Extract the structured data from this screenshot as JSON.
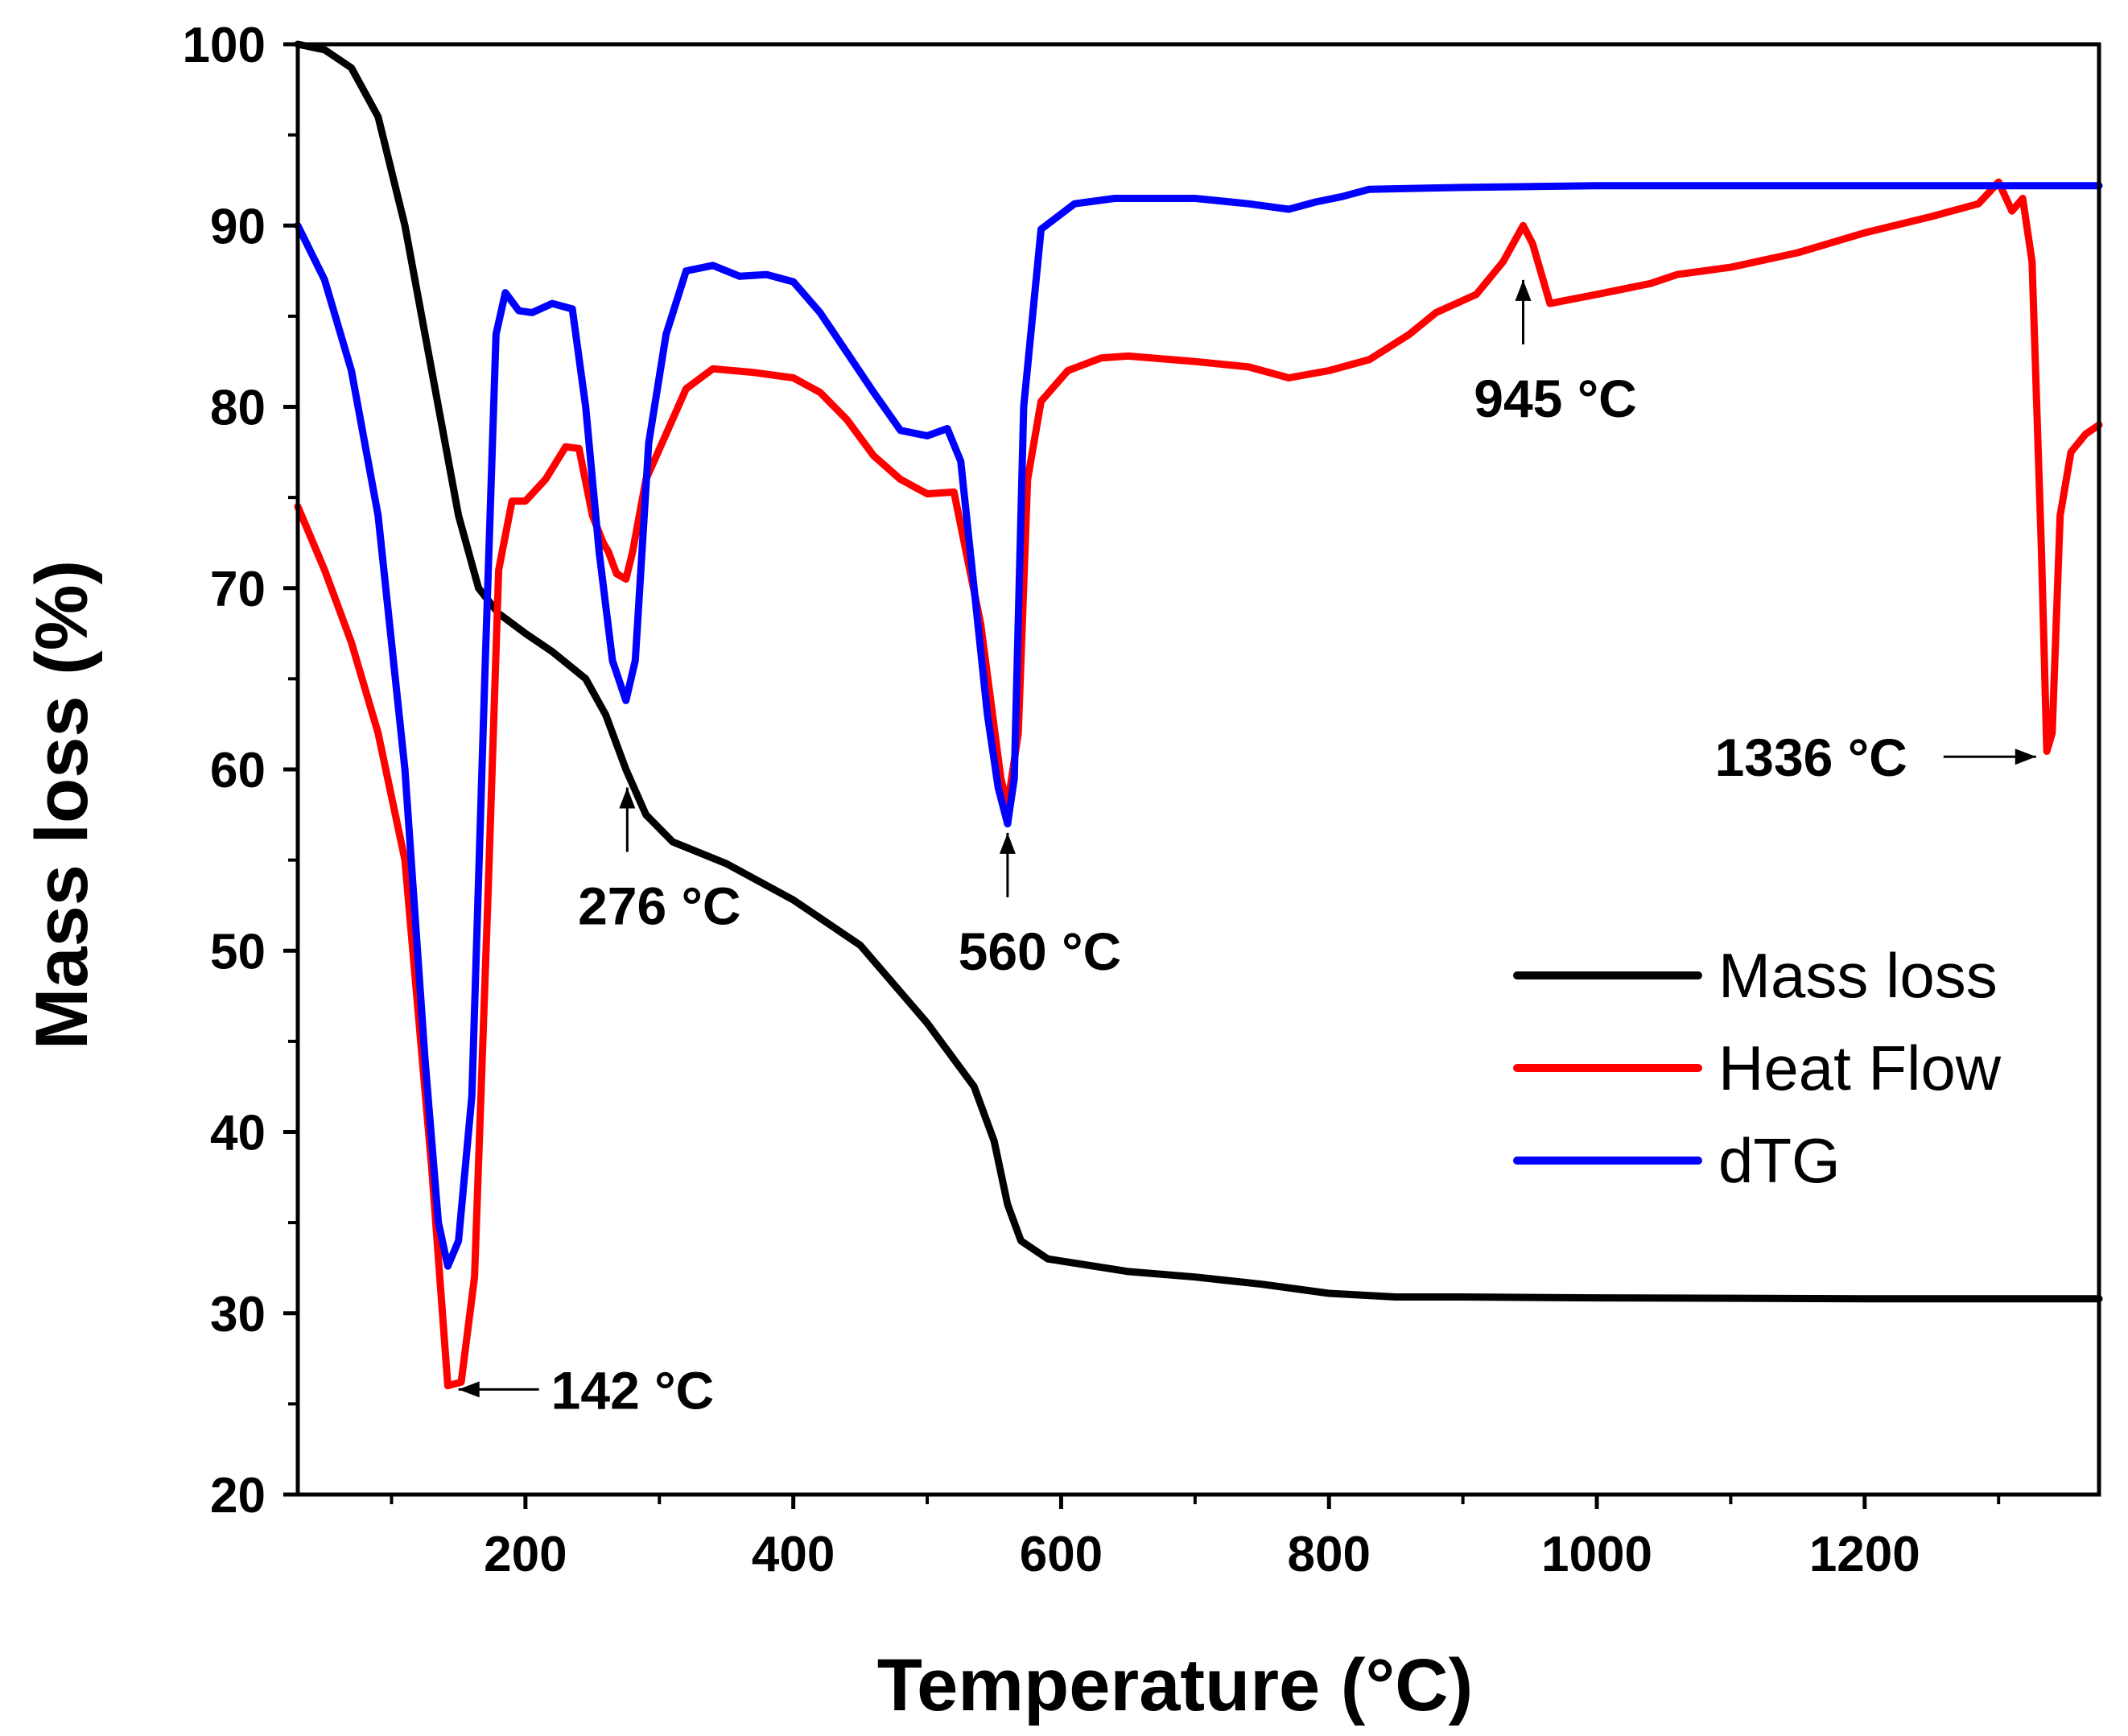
{
  "chart_data": {
    "type": "line",
    "title": "",
    "xlabel": "Temperature (°C)",
    "ylabel": "Mass loss (%)",
    "xlim": [
      30,
      1375
    ],
    "ylim": [
      20,
      100
    ],
    "x_ticks": [
      200,
      400,
      600,
      800,
      1000,
      1200
    ],
    "x_tick_labels": [
      "200",
      "400",
      "600",
      "800",
      "1000",
      "1200"
    ],
    "x_minor_ticks": [
      100,
      300,
      500,
      700,
      900,
      1100,
      1300
    ],
    "y_ticks": [
      20,
      30,
      40,
      50,
      60,
      70,
      80,
      90,
      100
    ],
    "y_tick_labels": [
      "20",
      "30",
      "40",
      "50",
      "60",
      "70",
      "80",
      "90",
      "100"
    ],
    "y_minor_ticks": [
      25,
      35,
      45,
      55,
      65,
      75,
      85,
      95
    ],
    "legend_position": "bottom-right",
    "series": [
      {
        "name": "Mass loss",
        "color": "#000000",
        "points": [
          [
            30,
            100
          ],
          [
            50,
            99.7
          ],
          [
            70,
            98.7
          ],
          [
            90,
            96
          ],
          [
            110,
            90
          ],
          [
            130,
            82
          ],
          [
            150,
            74
          ],
          [
            165,
            70
          ],
          [
            180,
            68.6
          ],
          [
            200,
            67.5
          ],
          [
            220,
            66.5
          ],
          [
            245,
            65
          ],
          [
            260,
            63
          ],
          [
            275,
            60
          ],
          [
            290,
            57.5
          ],
          [
            310,
            56
          ],
          [
            350,
            54.8
          ],
          [
            400,
            52.8
          ],
          [
            450,
            50.3
          ],
          [
            500,
            46
          ],
          [
            535,
            42.5
          ],
          [
            550,
            39.5
          ],
          [
            560,
            36
          ],
          [
            570,
            34
          ],
          [
            590,
            33
          ],
          [
            650,
            32.3
          ],
          [
            700,
            32
          ],
          [
            750,
            31.6
          ],
          [
            800,
            31.1
          ],
          [
            850,
            30.9
          ],
          [
            900,
            30.9
          ],
          [
            1000,
            30.85
          ],
          [
            1200,
            30.8
          ],
          [
            1375,
            30.8
          ]
        ]
      },
      {
        "name": "Heat Flow",
        "color": "#ff0000",
        "points": [
          [
            30,
            74.5
          ],
          [
            50,
            71
          ],
          [
            70,
            67
          ],
          [
            90,
            62
          ],
          [
            110,
            55
          ],
          [
            130,
            38
          ],
          [
            142,
            26
          ],
          [
            152,
            26.2
          ],
          [
            162,
            32
          ],
          [
            172,
            53
          ],
          [
            180,
            71
          ],
          [
            190,
            74.8
          ],
          [
            200,
            74.8
          ],
          [
            215,
            76
          ],
          [
            230,
            77.8
          ],
          [
            240,
            77.7
          ],
          [
            250,
            74
          ],
          [
            258,
            72.5
          ],
          [
            262,
            72
          ],
          [
            268,
            70.8
          ],
          [
            275,
            70.5
          ],
          [
            280,
            72
          ],
          [
            290,
            76
          ],
          [
            305,
            78.5
          ],
          [
            320,
            81
          ],
          [
            340,
            82.1
          ],
          [
            370,
            81.9
          ],
          [
            400,
            81.6
          ],
          [
            420,
            80.8
          ],
          [
            440,
            79.3
          ],
          [
            460,
            77.3
          ],
          [
            480,
            76
          ],
          [
            500,
            75.2
          ],
          [
            520,
            75.3
          ],
          [
            540,
            68
          ],
          [
            555,
            59.5
          ],
          [
            560,
            58
          ],
          [
            568,
            62
          ],
          [
            575,
            76
          ],
          [
            585,
            80.3
          ],
          [
            605,
            82
          ],
          [
            630,
            82.7
          ],
          [
            650,
            82.8
          ],
          [
            700,
            82.5
          ],
          [
            740,
            82.2
          ],
          [
            770,
            81.6
          ],
          [
            800,
            82
          ],
          [
            830,
            82.6
          ],
          [
            860,
            84
          ],
          [
            880,
            85.2
          ],
          [
            910,
            86.2
          ],
          [
            930,
            88
          ],
          [
            945,
            90
          ],
          [
            952,
            89
          ],
          [
            965,
            85.7
          ],
          [
            1000,
            86.2
          ],
          [
            1040,
            86.8
          ],
          [
            1060,
            87.3
          ],
          [
            1100,
            87.7
          ],
          [
            1150,
            88.5
          ],
          [
            1200,
            89.6
          ],
          [
            1250,
            90.5
          ],
          [
            1285,
            91.2
          ],
          [
            1300,
            92.4
          ],
          [
            1310,
            90.8
          ],
          [
            1318,
            91.5
          ],
          [
            1325,
            88
          ],
          [
            1332,
            72
          ],
          [
            1336,
            61
          ],
          [
            1340,
            62
          ],
          [
            1346,
            74
          ],
          [
            1354,
            77.5
          ],
          [
            1365,
            78.5
          ],
          [
            1375,
            79
          ]
        ]
      },
      {
        "name": "dTG",
        "color": "#0000ff",
        "points": [
          [
            30,
            90
          ],
          [
            50,
            87
          ],
          [
            70,
            82
          ],
          [
            90,
            74
          ],
          [
            110,
            60
          ],
          [
            125,
            44
          ],
          [
            135,
            35
          ],
          [
            142,
            32.6
          ],
          [
            150,
            34
          ],
          [
            160,
            42
          ],
          [
            170,
            66
          ],
          [
            178,
            84
          ],
          [
            185,
            86.3
          ],
          [
            195,
            85.3
          ],
          [
            205,
            85.2
          ],
          [
            220,
            85.7
          ],
          [
            235,
            85.4
          ],
          [
            245,
            80
          ],
          [
            255,
            72
          ],
          [
            265,
            66
          ],
          [
            275,
            63.8
          ],
          [
            282,
            66
          ],
          [
            292,
            78
          ],
          [
            305,
            84
          ],
          [
            320,
            87.5
          ],
          [
            340,
            87.8
          ],
          [
            360,
            87.2
          ],
          [
            380,
            87.3
          ],
          [
            400,
            86.9
          ],
          [
            420,
            85.2
          ],
          [
            440,
            83
          ],
          [
            460,
            80.8
          ],
          [
            480,
            78.7
          ],
          [
            500,
            78.4
          ],
          [
            515,
            78.8
          ],
          [
            525,
            77
          ],
          [
            535,
            70
          ],
          [
            545,
            63
          ],
          [
            553,
            59
          ],
          [
            560,
            57
          ],
          [
            565,
            59.5
          ],
          [
            572,
            80
          ],
          [
            585,
            89.8
          ],
          [
            610,
            91.2
          ],
          [
            640,
            91.5
          ],
          [
            700,
            91.5
          ],
          [
            740,
            91.2
          ],
          [
            770,
            90.9
          ],
          [
            790,
            91.3
          ],
          [
            810,
            91.6
          ],
          [
            830,
            92
          ],
          [
            900,
            92.1
          ],
          [
            1000,
            92.2
          ],
          [
            1200,
            92.2
          ],
          [
            1375,
            92.2
          ]
        ]
      }
    ],
    "annotations": [
      {
        "text": "142 °C",
        "arrow_target": [
          150,
          25.8
        ],
        "arrow_direction": "left"
      },
      {
        "text": "276 °C",
        "arrow_target": [
          276,
          59
        ],
        "arrow_direction": "up"
      },
      {
        "text": "560 °C",
        "arrow_target": [
          560,
          56.5
        ],
        "arrow_direction": "up"
      },
      {
        "text": "945 °C",
        "arrow_target": [
          945,
          87
        ],
        "arrow_direction": "up"
      },
      {
        "text": "1336 °C",
        "arrow_target": [
          1328,
          60.7
        ],
        "arrow_direction": "right"
      }
    ]
  }
}
